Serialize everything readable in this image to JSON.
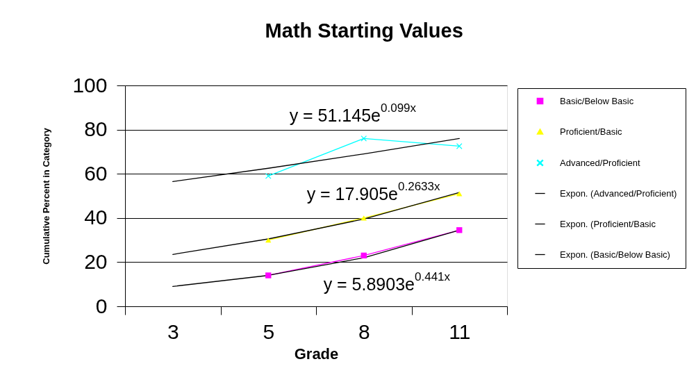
{
  "chart_data": {
    "type": "line",
    "title": "Math Starting Values",
    "xlabel": "Grade",
    "ylabel": "Cumulative Percent in Category",
    "categories": [
      "3",
      "5",
      "8",
      "11"
    ],
    "series": [
      {
        "name": "Basic/Below Basic",
        "color": "#ff00ff",
        "marker": "square",
        "values": [
          null,
          14,
          23,
          34.5
        ]
      },
      {
        "name": "Proficient/Basic",
        "color": "#ffff00",
        "marker": "triangle",
        "values": [
          null,
          30,
          40,
          51
        ]
      },
      {
        "name": "Advanced/Proficient",
        "color": "#00ffff",
        "marker": "cross",
        "values": [
          null,
          59,
          76,
          72.5
        ]
      },
      {
        "name": "Expon. (Advanced/Proficient)",
        "color": "#000000",
        "marker": "none",
        "values": [
          56.5,
          62.5,
          69,
          76
        ]
      },
      {
        "name": "Expon. (Proficient/Basic",
        "color": "#000000",
        "marker": "none",
        "values": [
          23.5,
          30.5,
          39.5,
          51.5
        ]
      },
      {
        "name": "Expon. (Basic/Below Basic)",
        "color": "#000000",
        "marker": "none",
        "values": [
          9,
          14,
          22,
          34.5
        ]
      }
    ],
    "ylim": [
      0,
      100
    ],
    "yticks": [
      0,
      20,
      40,
      60,
      80,
      100
    ],
    "grid": "y",
    "legend": "right",
    "annotations": [
      "y = 51.145e$^{0.099x}$",
      "y = 17.905e$^{0.2633x}$",
      "y = 5.8903e$^{0.441x}$"
    ]
  }
}
